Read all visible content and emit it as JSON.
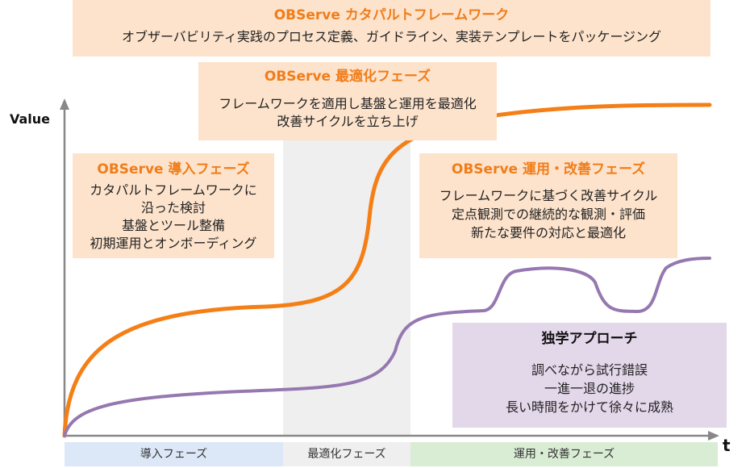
{
  "axes": {
    "y_label": "Value",
    "x_label": "t"
  },
  "framework": {
    "title": "OBServe カタパルトフレームワーク",
    "body": "オブザーバビリティ実践のプロセス定義、ガイドライン、実装テンプレートをパッケージング"
  },
  "optimize_phase": {
    "title": "OBServe 最適化フェーズ",
    "lines": [
      "フレームワークを適用し基盤と運用を最適化",
      "改善サイクルを立ち上げ"
    ]
  },
  "intro_phase": {
    "title": "OBServe 導入フェーズ",
    "lines": [
      "カタパルトフレームワークに",
      "沿った検討",
      "基盤とツール整備",
      "初期運用とオンボーディング"
    ]
  },
  "operate_phase": {
    "title": "OBServe 運用・改善フェーズ",
    "lines": [
      "フレームワークに基づく改善サイクル",
      "定点観測での継続的な観測・評価",
      "新たな要件の対応と最適化"
    ]
  },
  "solo_approach": {
    "title": "独学アプローチ",
    "lines": [
      "調べながら試行錯誤",
      "一進一退の進捗",
      "長い時間をかけて徐々に成熟"
    ]
  },
  "timeline": {
    "phases": [
      "導入フェーズ",
      "最適化フェーズ",
      "運用・改善フェーズ"
    ]
  },
  "colors": {
    "observe_curve": "#f57f17",
    "solo_curve": "#9678b0",
    "intro_band": "#dce8f7",
    "optimize_band": "#efefef",
    "operate_band": "#d9ecd4",
    "optimize_shade": "#efefef"
  }
}
